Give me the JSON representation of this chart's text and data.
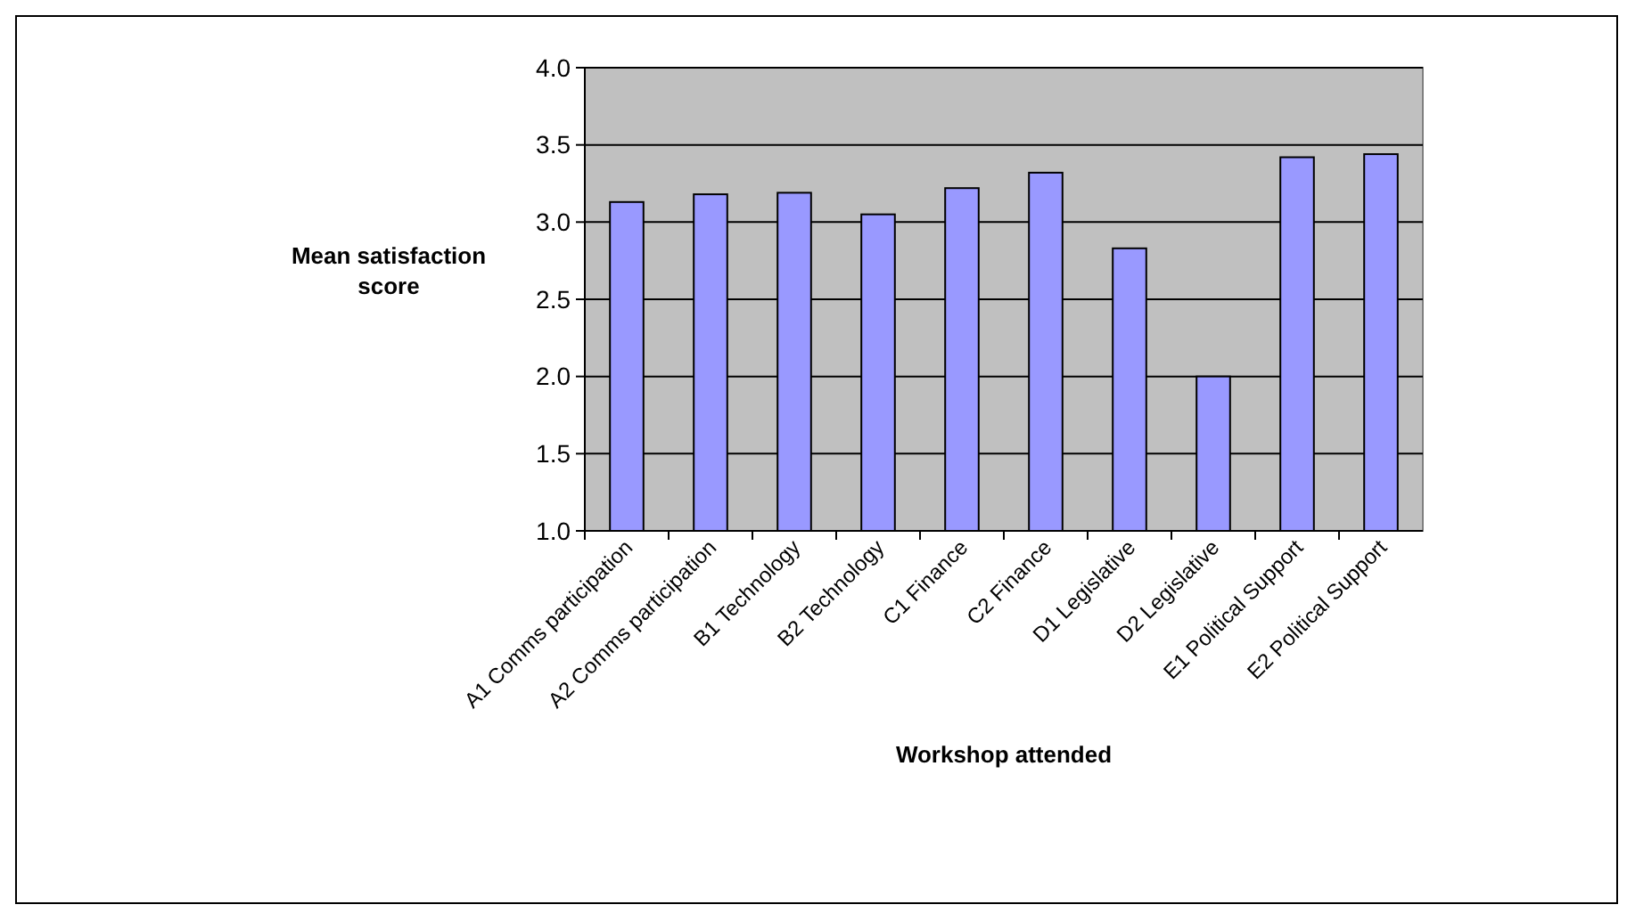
{
  "chart_data": {
    "type": "bar",
    "xlabel": "Workshop attended",
    "ylabel": "Mean satisfaction score",
    "categories": [
      "A1 Comms participation",
      "A2 Comms participation",
      "B1 Technology",
      "B2 Technology",
      "C1 Finance",
      "C2 Finance",
      "D1 Legislative",
      "D2 Legislative",
      "E1 Political Support",
      "E2 Political Support"
    ],
    "values": [
      3.13,
      3.18,
      3.19,
      3.05,
      3.22,
      3.32,
      2.83,
      2.0,
      3.42,
      3.44
    ],
    "color": "#9999ff",
    "ylim": [
      1.0,
      4.0
    ],
    "yticks": [
      {
        "value": 1,
        "label": "1.0"
      },
      {
        "value": 1.5,
        "label": "1.5"
      },
      {
        "value": 2,
        "label": "2.0"
      },
      {
        "value": 2.5,
        "label": "2.5"
      },
      {
        "value": 3,
        "label": "3.0"
      },
      {
        "value": 3.5,
        "label": "3.5"
      },
      {
        "value": 4,
        "label": "4.0"
      }
    ],
    "grid": "y"
  }
}
